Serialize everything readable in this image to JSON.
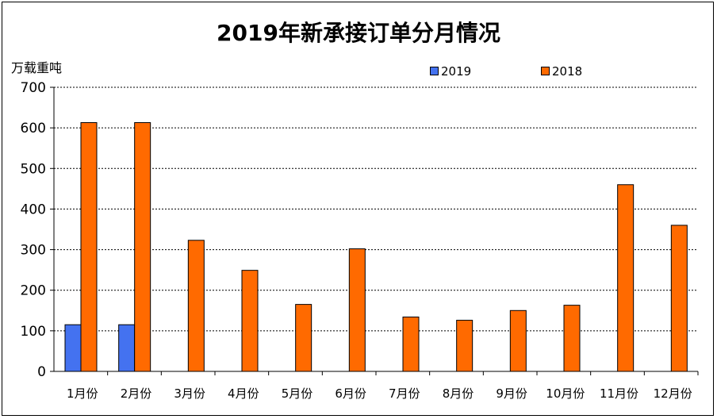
{
  "chart_data": {
    "type": "bar",
    "title": "2019年新承接订单分月情况",
    "ylabel": "万载重吨",
    "xlabel": "",
    "ylim": [
      0,
      700
    ],
    "yticks": [
      0,
      100,
      200,
      300,
      400,
      500,
      600,
      700
    ],
    "grid": true,
    "legend_position": "top",
    "categories": [
      "1月份",
      "2月份",
      "3月份",
      "4月份",
      "5月份",
      "6月份",
      "7月份",
      "8月份",
      "9月份",
      "10月份",
      "11月份",
      "12月份"
    ],
    "series": [
      {
        "name": "2019",
        "color": "#4472f0",
        "values": [
          115,
          115,
          null,
          null,
          null,
          null,
          null,
          null,
          null,
          null,
          null,
          null
        ]
      },
      {
        "name": "2018",
        "color": "#ff6a00",
        "values": [
          613,
          613,
          323,
          249,
          165,
          302,
          134,
          126,
          150,
          163,
          460,
          360
        ]
      }
    ]
  }
}
